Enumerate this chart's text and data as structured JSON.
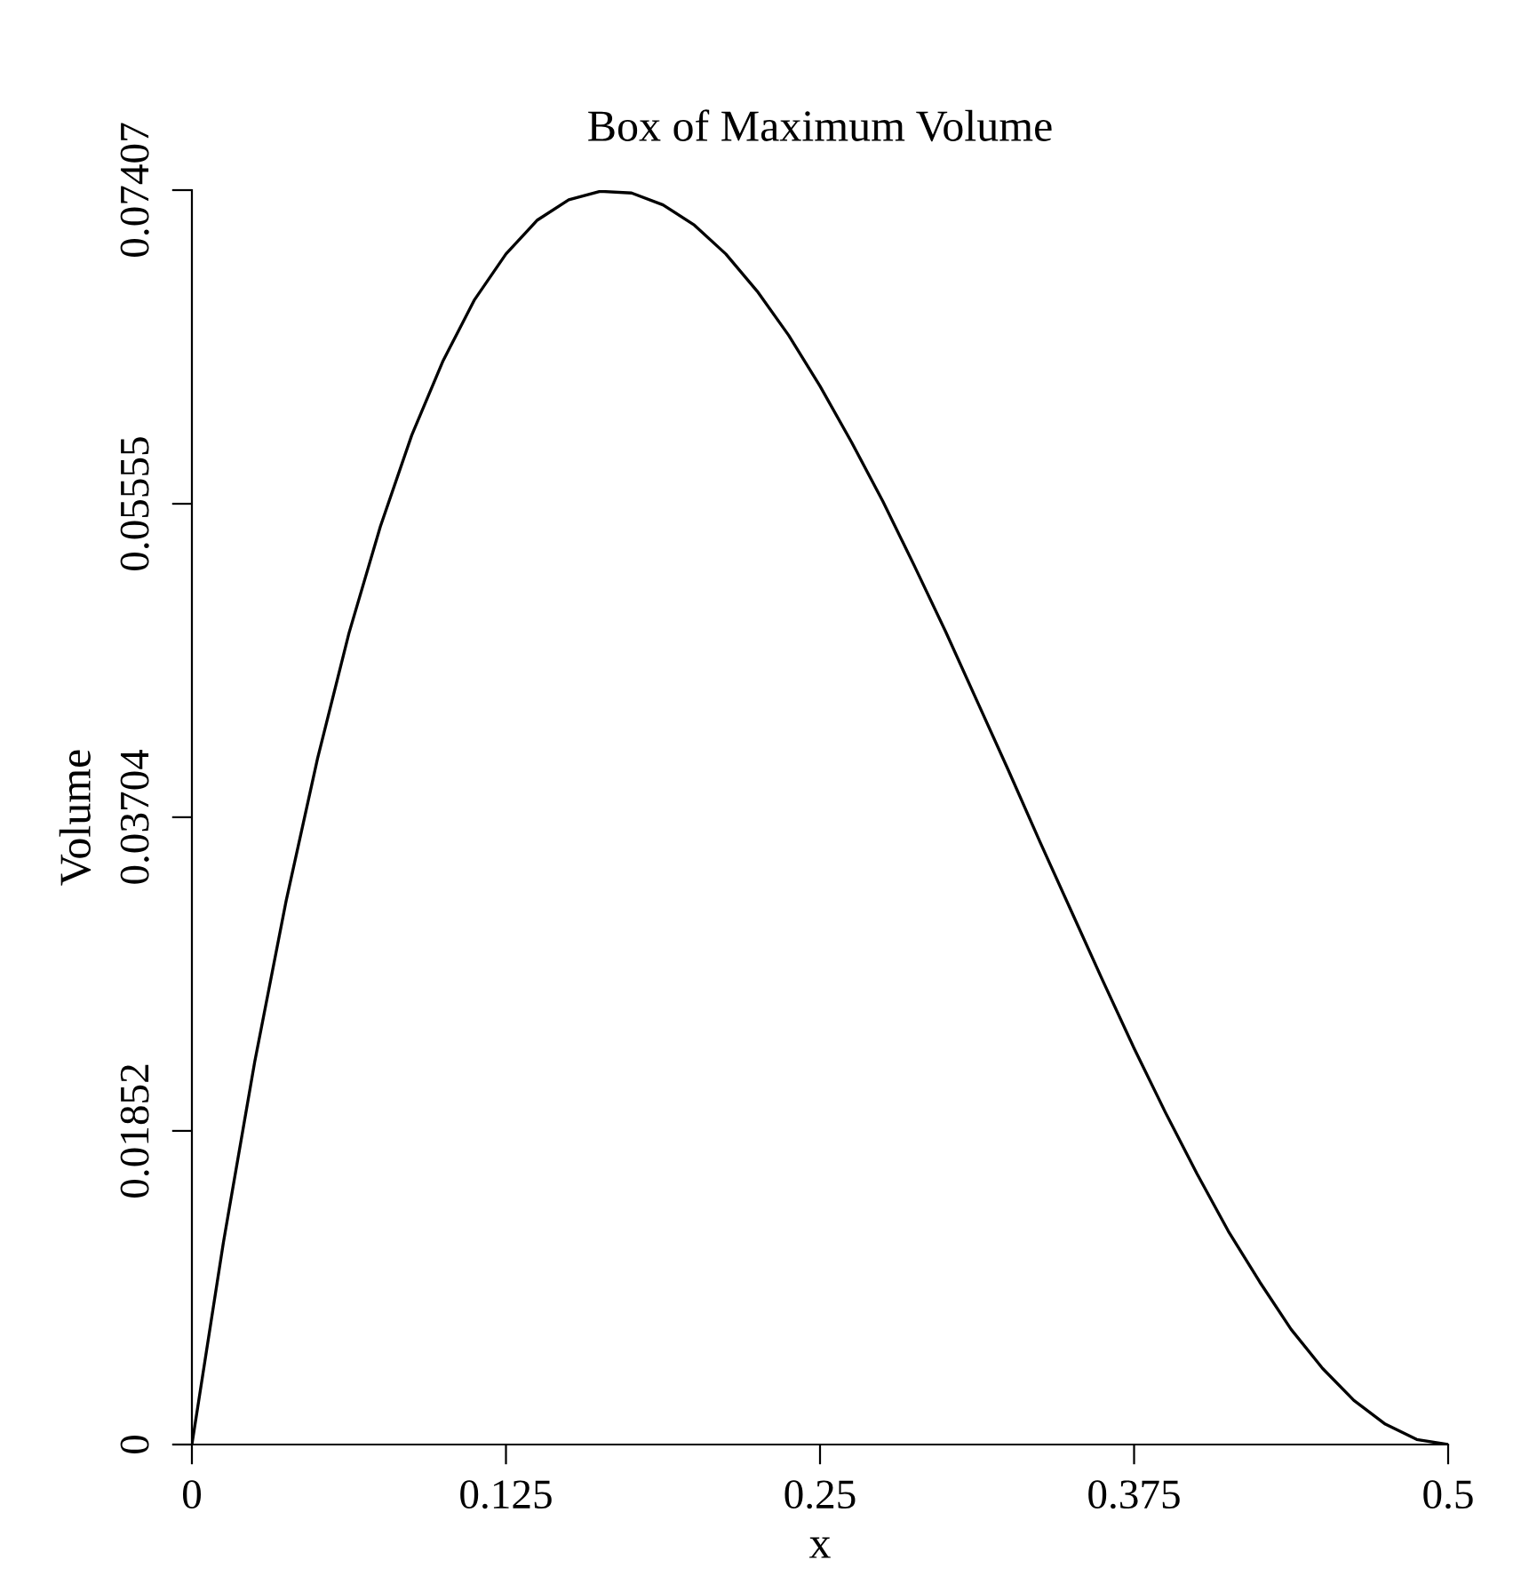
{
  "chart_data": {
    "type": "line",
    "title": "Box of Maximum Volume",
    "xlabel": "x",
    "ylabel": "Volume",
    "x": [
      0,
      0.0125,
      0.025,
      0.0375,
      0.05,
      0.0625,
      0.075,
      0.0875,
      0.1,
      0.1125,
      0.125,
      0.1375,
      0.15,
      0.1625,
      0.175,
      0.1875,
      0.2,
      0.2125,
      0.225,
      0.2375,
      0.25,
      0.2625,
      0.275,
      0.2875,
      0.3,
      0.3125,
      0.325,
      0.3375,
      0.35,
      0.3625,
      0.375,
      0.3875,
      0.4,
      0.4125,
      0.425,
      0.4375,
      0.45,
      0.4625,
      0.475,
      0.4875,
      0.5
    ],
    "series": [
      {
        "color": "#000000",
        "values": [
          0,
          0.0119,
          0.0226,
          0.0321,
          0.0405,
          0.0479,
          0.0542,
          0.0596,
          0.064,
          0.0676,
          0.0703,
          0.0723,
          0.0735,
          0.074,
          0.0739,
          0.0732,
          0.072,
          0.0703,
          0.0681,
          0.0655,
          0.0625,
          0.0592,
          0.0557,
          0.0519,
          0.048,
          0.0439,
          0.0398,
          0.0356,
          0.0315,
          0.0274,
          0.0234,
          0.0196,
          0.016,
          0.0126,
          0.0096,
          0.0068,
          0.0045,
          0.0026,
          0.0012,
          0.0003,
          0
        ]
      }
    ],
    "xlim": [
      0,
      0.5
    ],
    "ylim": [
      0,
      0.07407
    ],
    "xticks": [
      0,
      0.125,
      0.25,
      0.375,
      0.5
    ],
    "yticks": [
      0,
      0.01852,
      0.03704,
      0.05555,
      0.07407
    ],
    "grid": false,
    "legend": false,
    "line_style": "solid",
    "marker": "none"
  }
}
